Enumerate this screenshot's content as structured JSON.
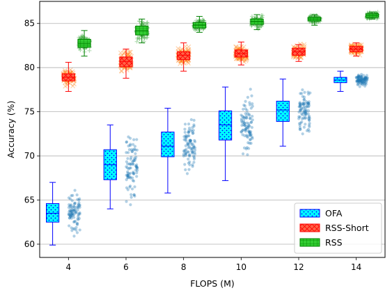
{
  "chart_data": {
    "type": "box",
    "title": "",
    "xlabel": "FLOPS (M)",
    "ylabel": "Accuracy (%)",
    "x_ticks": [
      4,
      6,
      8,
      10,
      12,
      14
    ],
    "y_ticks": [
      60,
      65,
      70,
      75,
      80,
      85
    ],
    "ylim": [
      58.5,
      87.5
    ],
    "xlim": [
      3,
      15
    ],
    "grid": "horizontal",
    "legend_position": "lower right",
    "series": [
      {
        "name": "OFA",
        "color": "#00ffff",
        "edge_color": "#0000ff",
        "point_color": "#1f77b4",
        "point_marker": "circle",
        "hatch": "dots",
        "offset": -0.55,
        "boxes": [
          {
            "x": 4,
            "whisker_low": 59.9,
            "q1": 62.5,
            "median": 63.5,
            "q3": 64.6,
            "whisker_high": 67.0,
            "spread_low": 60.0,
            "spread_high": 67.0
          },
          {
            "x": 6,
            "whisker_low": 64.0,
            "q1": 67.3,
            "median": 69.0,
            "q3": 70.7,
            "whisker_high": 73.5,
            "spread_low": 64.0,
            "spread_high": 73.5
          },
          {
            "x": 8,
            "whisker_low": 65.8,
            "q1": 69.9,
            "median": 71.1,
            "q3": 72.7,
            "whisker_high": 75.4,
            "spread_low": 63.6,
            "spread_high": 75.4
          },
          {
            "x": 10,
            "whisker_low": 67.2,
            "q1": 71.8,
            "median": 73.5,
            "q3": 75.1,
            "whisker_high": 77.8,
            "spread_low": 67.2,
            "spread_high": 77.8
          },
          {
            "x": 12,
            "whisker_low": 71.1,
            "q1": 73.9,
            "median": 75.2,
            "q3": 76.2,
            "whisker_high": 78.7,
            "spread_low": 72.5,
            "spread_high": 78.7
          },
          {
            "x": 14,
            "whisker_low": 77.3,
            "q1": 78.3,
            "median": 78.6,
            "q3": 78.9,
            "whisker_high": 79.6,
            "spread_low": 77.8,
            "spread_high": 79.8
          }
        ]
      },
      {
        "name": "RSS-Short",
        "color": "#ff6347",
        "edge_color": "#ff0000",
        "point_color": "#ff7f0e",
        "point_marker": "x",
        "hatch": "crosses",
        "offset": 0,
        "boxes": [
          {
            "x": 4,
            "whisker_low": 77.3,
            "q1": 78.5,
            "median": 78.9,
            "q3": 79.3,
            "whisker_high": 80.6,
            "spread_low": 76.8,
            "spread_high": 80.6
          },
          {
            "x": 6,
            "whisker_low": 78.8,
            "q1": 80.1,
            "median": 80.7,
            "q3": 81.2,
            "whisker_high": 82.1,
            "spread_low": 79.0,
            "spread_high": 82.2
          },
          {
            "x": 8,
            "whisker_low": 79.6,
            "q1": 80.9,
            "median": 81.4,
            "q3": 81.8,
            "whisker_high": 82.8,
            "spread_low": 79.2,
            "spread_high": 82.8
          },
          {
            "x": 10,
            "whisker_low": 80.3,
            "q1": 81.2,
            "median": 81.6,
            "q3": 82.0,
            "whisker_high": 82.9,
            "spread_low": 79.2,
            "spread_high": 82.9
          },
          {
            "x": 12,
            "whisker_low": 80.7,
            "q1": 81.4,
            "median": 81.8,
            "q3": 82.2,
            "whisker_high": 82.6,
            "spread_low": 80.6,
            "spread_high": 82.8
          },
          {
            "x": 14,
            "whisker_low": 81.3,
            "q1": 81.8,
            "median": 82.1,
            "q3": 82.4,
            "whisker_high": 82.8,
            "spread_low": 81.2,
            "spread_high": 82.9
          }
        ]
      },
      {
        "name": "RSS",
        "color": "#32cd32",
        "edge_color": "#008000",
        "point_color": "#2ca02c",
        "point_marker": "plus",
        "hatch": "grid",
        "offset": 0.55,
        "boxes": [
          {
            "x": 4,
            "whisker_low": 81.3,
            "q1": 82.3,
            "median": 82.7,
            "q3": 83.2,
            "whisker_high": 84.2,
            "spread_low": 81.0,
            "spread_high": 84.3
          },
          {
            "x": 6,
            "whisker_low": 82.8,
            "q1": 83.7,
            "median": 84.2,
            "q3": 84.7,
            "whisker_high": 85.5,
            "spread_low": 82.7,
            "spread_high": 85.7
          },
          {
            "x": 8,
            "whisker_low": 84.0,
            "q1": 84.5,
            "median": 84.8,
            "q3": 85.1,
            "whisker_high": 85.8,
            "spread_low": 83.3,
            "spread_high": 85.8
          },
          {
            "x": 10,
            "whisker_low": 84.3,
            "q1": 84.9,
            "median": 85.2,
            "q3": 85.5,
            "whisker_high": 86.0,
            "spread_low": 83.6,
            "spread_high": 86.1
          },
          {
            "x": 12,
            "whisker_low": 84.8,
            "q1": 85.3,
            "median": 85.5,
            "q3": 85.7,
            "whisker_high": 86.0,
            "spread_low": 84.8,
            "spread_high": 86.0
          },
          {
            "x": 14,
            "whisker_low": 85.5,
            "q1": 85.7,
            "median": 85.9,
            "q3": 86.1,
            "whisker_high": 86.3,
            "spread_low": 85.5,
            "spread_high": 86.3
          }
        ]
      }
    ]
  }
}
